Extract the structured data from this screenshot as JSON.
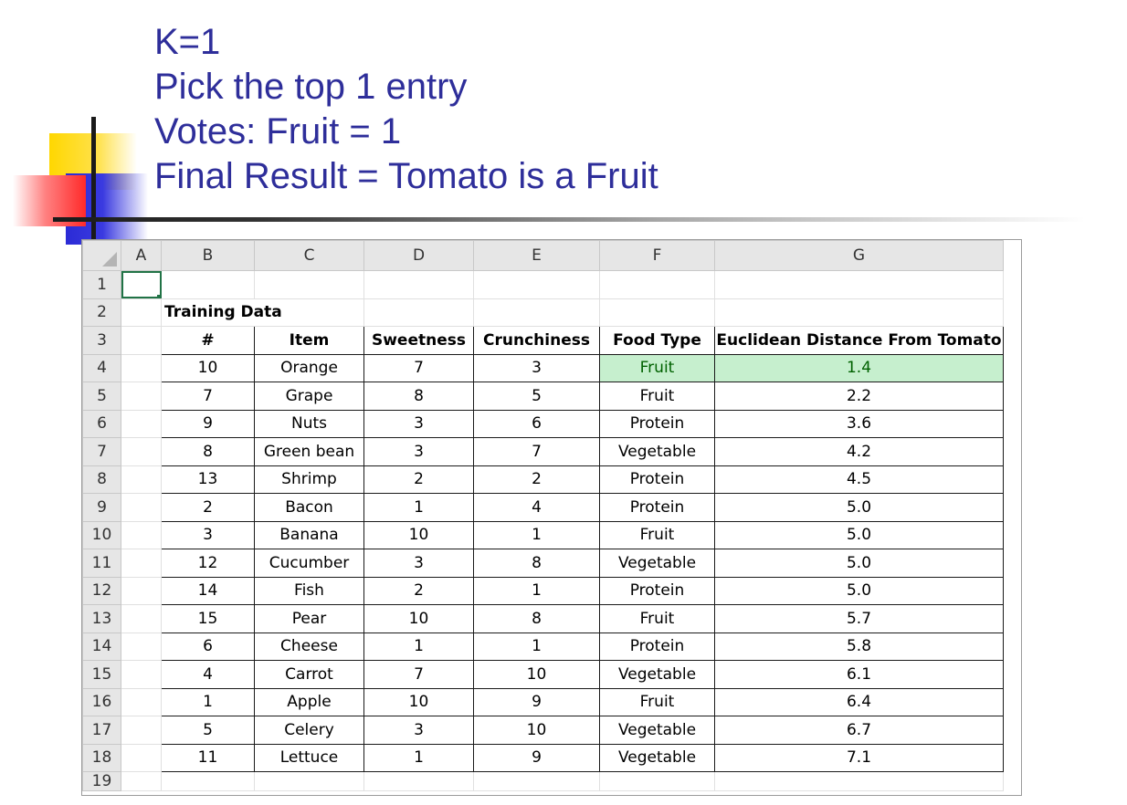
{
  "slide": {
    "lines": [
      "K=1",
      "Pick the top 1 entry",
      "Votes: Fruit = 1",
      "Final Result = Tomato is a Fruit"
    ]
  },
  "sheet": {
    "columns": [
      "A",
      "B",
      "C",
      "D",
      "E",
      "F",
      "G"
    ],
    "row_numbers": [
      "1",
      "2",
      "3",
      "4",
      "5",
      "6",
      "7",
      "8",
      "9",
      "10",
      "11",
      "12",
      "13",
      "14",
      "15",
      "16",
      "17",
      "18",
      "19"
    ],
    "section_label": "Training Data",
    "headers": [
      "#",
      "Item",
      "Sweetness",
      "Crunchiness",
      "Food Type",
      "Euclidean Distance From Tomato"
    ],
    "rows": [
      [
        "10",
        "Orange",
        "7",
        "3",
        "Fruit",
        "1.4"
      ],
      [
        "7",
        "Grape",
        "8",
        "5",
        "Fruit",
        "2.2"
      ],
      [
        "9",
        "Nuts",
        "3",
        "6",
        "Protein",
        "3.6"
      ],
      [
        "8",
        "Green bean",
        "3",
        "7",
        "Vegetable",
        "4.2"
      ],
      [
        "13",
        "Shrimp",
        "2",
        "2",
        "Protein",
        "4.5"
      ],
      [
        "2",
        "Bacon",
        "1",
        "4",
        "Protein",
        "5.0"
      ],
      [
        "3",
        "Banana",
        "10",
        "1",
        "Fruit",
        "5.0"
      ],
      [
        "12",
        "Cucumber",
        "3",
        "8",
        "Vegetable",
        "5.0"
      ],
      [
        "14",
        "Fish",
        "2",
        "1",
        "Protein",
        "5.0"
      ],
      [
        "15",
        "Pear",
        "10",
        "8",
        "Fruit",
        "5.7"
      ],
      [
        "6",
        "Cheese",
        "1",
        "1",
        "Protein",
        "5.8"
      ],
      [
        "4",
        "Carrot",
        "7",
        "10",
        "Vegetable",
        "6.1"
      ],
      [
        "1",
        "Apple",
        "10",
        "9",
        "Fruit",
        "6.4"
      ],
      [
        "5",
        "Celery",
        "3",
        "10",
        "Vegetable",
        "6.7"
      ],
      [
        "11",
        "Lettuce",
        "1",
        "9",
        "Vegetable",
        "7.1"
      ]
    ],
    "highlight_color": "#c6efce",
    "highlight_text_color": "#006100",
    "selection_color": "#217346"
  }
}
